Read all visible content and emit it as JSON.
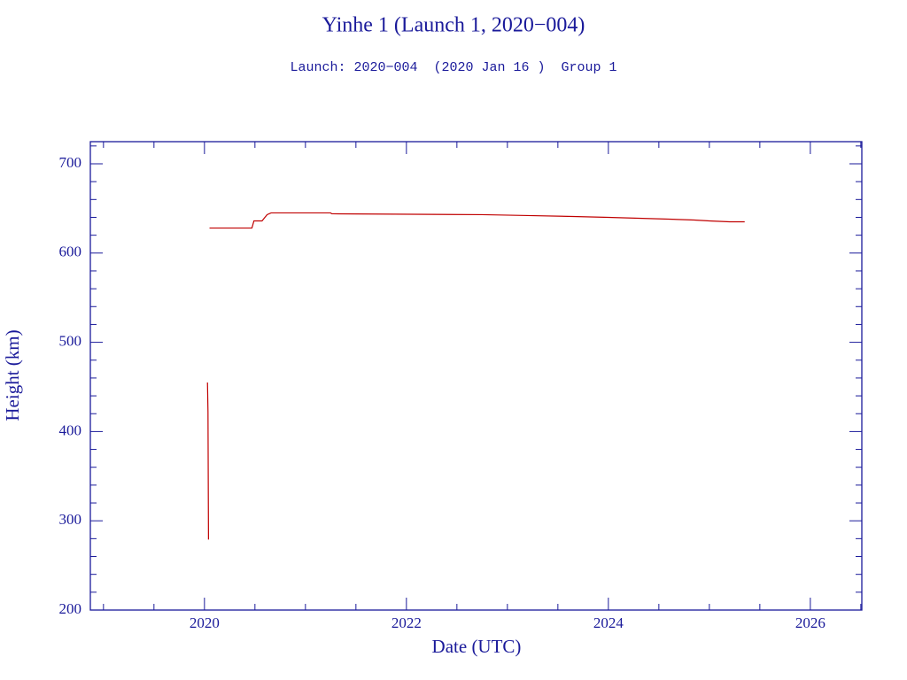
{
  "chart_data": {
    "type": "line",
    "title": "Yinhe 1 (Launch 1, 2020−004)",
    "subtitle": "Launch: 2020−004  (2020 Jan 16 )  Group 1",
    "x_label": "Date (UTC)",
    "y_label": "Height (km)",
    "x": [
      2020.03,
      2020.035,
      2020.04,
      2020.045,
      2020.05,
      2020.47,
      2020.49,
      2020.57,
      2020.62,
      2020.66,
      2021.25,
      2021.26,
      2022.75,
      2023.2,
      2023.65,
      2024.0,
      2024.3,
      2024.6,
      2024.85,
      2025.0,
      2025.2,
      2025.35
    ],
    "series": [
      {
        "name": "Yinhe 1",
        "color": "#c00000",
        "values": [
          455,
          422,
          279,
          null,
          628,
          628,
          636,
          636,
          643,
          645,
          645,
          644,
          643,
          642,
          641,
          640,
          639,
          638,
          637,
          636,
          635,
          635
        ]
      }
    ],
    "xlim": [
      2018.87,
      2026.51
    ],
    "ylim": [
      200,
      724.8
    ],
    "xticks": [
      2020,
      2022,
      2024,
      2026
    ],
    "yticks": [
      200,
      300,
      400,
      500,
      600,
      700
    ],
    "xminorticks": [
      2019,
      2019.5,
      2020.5,
      2021,
      2021.5,
      2022.5,
      2023,
      2023.5,
      2024.5,
      2025,
      2025.5,
      2026.5
    ],
    "yminorticks": [
      220,
      240,
      260,
      280,
      320,
      340,
      360,
      380,
      420,
      440,
      460,
      480,
      520,
      540,
      560,
      580,
      620,
      640,
      660,
      680,
      720
    ],
    "axis_color": "#1a1a9a"
  }
}
